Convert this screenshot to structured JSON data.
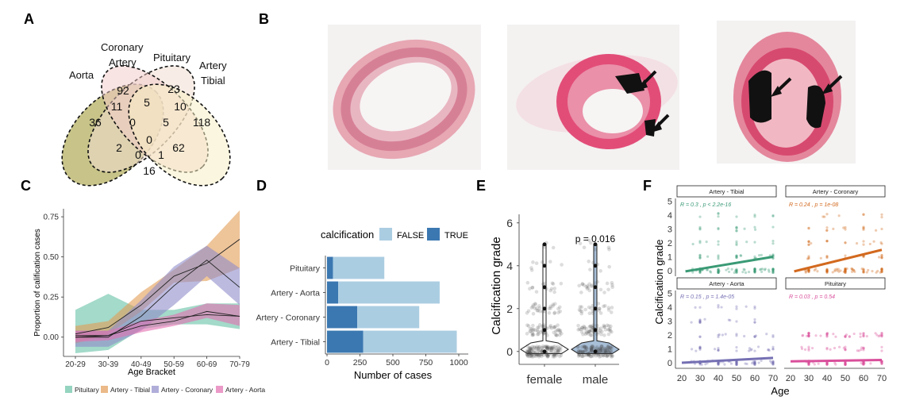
{
  "panel_letters": [
    "A",
    "B",
    "C",
    "D",
    "E",
    "F"
  ],
  "venn": {
    "labels": {
      "aorta": "Aorta",
      "coronary_1": "Coronary",
      "coronary_2": "Artery",
      "pituitary": "Pituitary",
      "tibial_1": "Artery",
      "tibial_2": "Tibial"
    },
    "counts": [
      "36",
      "11",
      "92",
      "5",
      "23",
      "10",
      "118",
      "2",
      "0",
      "5",
      "0",
      "62",
      "16",
      "0",
      "1"
    ],
    "colors": {
      "aorta": "#b5b061",
      "coronary": "#f0dfd2",
      "pituitary": "#f2c9c8",
      "tibial": "#f7eec4"
    }
  },
  "histology": {
    "count": 3
  },
  "chart_data": [
    {
      "panel": "C",
      "type": "line",
      "xlabel": "Age Bracket",
      "ylabel": "Proportion of calification cases",
      "categories": [
        "20-29",
        "30-39",
        "40-49",
        "50-59",
        "60-69",
        "70-79"
      ],
      "yticks": [
        "0.00",
        "0.25",
        "0.50",
        "0.75"
      ],
      "ylim": [
        -0.12,
        0.8
      ],
      "legend_position": "bottom",
      "series": [
        {
          "name": "Pituitary",
          "color": "#66c2a5",
          "values": [
            0.0,
            0.01,
            0.1,
            0.12,
            0.14,
            0.13
          ],
          "lower": [
            -0.1,
            -0.08,
            0.05,
            0.08,
            0.08,
            0.05
          ],
          "upper": [
            0.17,
            0.27,
            0.17,
            0.17,
            0.21,
            0.21
          ]
        },
        {
          "name": "Artery - Tibial",
          "color": "#e39c55",
          "values": [
            0.02,
            0.06,
            0.2,
            0.38,
            0.46,
            0.61
          ],
          "lower": [
            -0.04,
            0.02,
            0.16,
            0.34,
            0.35,
            0.43
          ],
          "upper": [
            0.07,
            0.1,
            0.28,
            0.42,
            0.57,
            0.79
          ]
        },
        {
          "name": "Artery - Coronary",
          "color": "#8f8cc9",
          "values": [
            0.0,
            0.0,
            0.13,
            0.32,
            0.48,
            0.31
          ],
          "lower": [
            -0.06,
            -0.06,
            0.04,
            0.2,
            0.38,
            0.2
          ],
          "upper": [
            0.04,
            0.04,
            0.23,
            0.44,
            0.57,
            0.43
          ]
        },
        {
          "name": "Artery - Aorta",
          "color": "#e36fb1",
          "values": [
            0.01,
            0.01,
            0.07,
            0.1,
            0.16,
            0.13
          ],
          "lower": [
            -0.03,
            -0.02,
            0.03,
            0.07,
            0.12,
            0.07
          ],
          "upper": [
            0.04,
            0.04,
            0.1,
            0.14,
            0.21,
            0.2
          ]
        }
      ]
    },
    {
      "panel": "D",
      "type": "bar",
      "orientation": "horizontal",
      "stacked": true,
      "legend_title": "calcification",
      "legend_position": "top",
      "categories": [
        "Pituitary",
        "Artery - Aorta",
        "Artery - Coronary",
        "Artery - Tibial"
      ],
      "xlabel": "Number of cases",
      "xticks": [
        "0",
        "250",
        "500",
        "750",
        "1000"
      ],
      "xlim": [
        0,
        1000
      ],
      "series": [
        {
          "name": "TRUE",
          "color": "#3b78b1",
          "values": [
            45,
            85,
            230,
            275
          ]
        },
        {
          "name": "FALSE",
          "color": "#abcde2",
          "values": [
            390,
            770,
            470,
            710
          ]
        }
      ]
    },
    {
      "panel": "E",
      "type": "scatter",
      "subtype": "violin",
      "categories": [
        "female",
        "male"
      ],
      "ylabel": "Calcification grade",
      "yticks": [
        "0",
        "2",
        "4",
        "6"
      ],
      "ylim": [
        -0.6,
        6.4
      ],
      "annotation": "p = 0.016",
      "series": [
        {
          "name": "female",
          "fill": "#ffffff",
          "max": 5,
          "medians": [
            0,
            1,
            2,
            3,
            4,
            5
          ]
        },
        {
          "name": "male",
          "fill": "#a8bfd8",
          "max": 5,
          "medians": [
            0,
            1,
            2,
            3,
            4,
            5
          ]
        }
      ]
    },
    {
      "panel": "F",
      "type": "scatter",
      "ylabel": "Calcification grade",
      "xlabel": "Age",
      "xticks": [
        "20",
        "30",
        "40",
        "50",
        "60",
        "70"
      ],
      "yticks": [
        "0",
        "1",
        "2",
        "3",
        "4",
        "5"
      ],
      "xlim": [
        20,
        70
      ],
      "ylim": [
        -0.4,
        5.2
      ],
      "facets": [
        {
          "title": "Artery - Tibial",
          "color": "#3a9a76",
          "stat": "R = 0.3 , p < 2.2e-16",
          "fit": [
            [
              22,
              -0.05
            ],
            [
              70,
              1.0
            ]
          ]
        },
        {
          "title": "Artery - Coronary",
          "color": "#d2691e",
          "stat": "R = 0.24 , p = 1e-08",
          "fit": [
            [
              22,
              -0.05
            ],
            [
              70,
              1.5
            ]
          ]
        },
        {
          "title": "Artery - Aorta",
          "color": "#7570b3",
          "stat": "R = 0.15 , p = 1.4e-05",
          "fit": [
            [
              20,
              0.0
            ],
            [
              70,
              0.35
            ]
          ]
        },
        {
          "title": "Pituitary",
          "color": "#d94f9b",
          "stat": "R = 0.03 , p = 0.54",
          "fit": [
            [
              20,
              0.1
            ],
            [
              70,
              0.2
            ]
          ]
        }
      ]
    }
  ]
}
